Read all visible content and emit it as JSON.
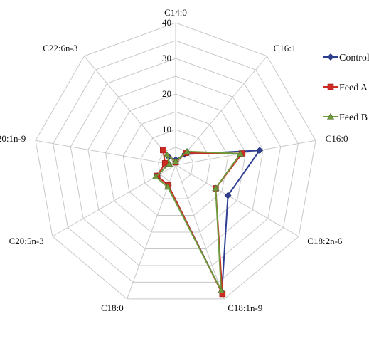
{
  "chart_data": {
    "type": "radar",
    "categories": [
      "C14:0",
      "C16:1",
      "C16:0",
      "C18:2n-6",
      "C18:1n-9",
      "C18:0",
      "C20:5n-3",
      "C20:1n-9",
      "C22:6n-3"
    ],
    "radial_ticks": [
      "10",
      "20",
      "30",
      "40"
    ],
    "rlim": [
      0,
      40
    ],
    "grid": true,
    "legend_position": "right",
    "series": [
      {
        "name": "Control",
        "color": "#2e3f93",
        "marker": "diamond",
        "values": [
          1.5,
          4,
          24,
          17,
          38,
          6,
          6,
          2,
          3
        ]
      },
      {
        "name": "Feed A",
        "color": "#d02b22",
        "marker": "square",
        "values": [
          0.8,
          4.5,
          19,
          13,
          38.5,
          6,
          6,
          3,
          5.5
        ]
      },
      {
        "name": "Feed B",
        "color": "#6f9a3d",
        "marker": "triangle",
        "values": [
          1,
          5,
          18.5,
          13,
          37.5,
          6.5,
          6.5,
          1.8,
          3.8
        ]
      }
    ]
  }
}
